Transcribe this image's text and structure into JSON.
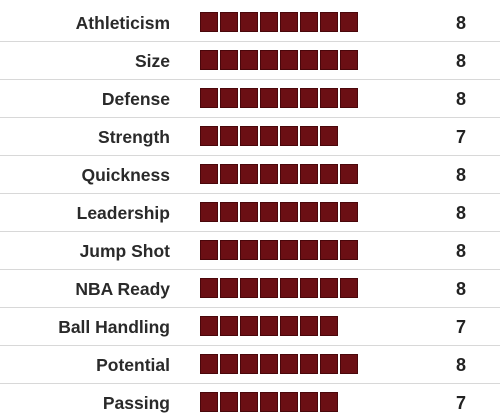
{
  "segment_color": "#6b0f14",
  "separator_color": "#d8d8d8",
  "scale_max": 10,
  "ratings": [
    {
      "label": "Athleticism",
      "score": "8"
    },
    {
      "label": "Size",
      "score": "8"
    },
    {
      "label": "Defense",
      "score": "8"
    },
    {
      "label": "Strength",
      "score": "7"
    },
    {
      "label": "Quickness",
      "score": "8"
    },
    {
      "label": "Leadership",
      "score": "8"
    },
    {
      "label": "Jump Shot",
      "score": "8"
    },
    {
      "label": "NBA Ready",
      "score": "8"
    },
    {
      "label": "Ball Handling",
      "score": "7"
    },
    {
      "label": "Potential",
      "score": "8"
    },
    {
      "label": "Passing",
      "score": "7"
    }
  ]
}
